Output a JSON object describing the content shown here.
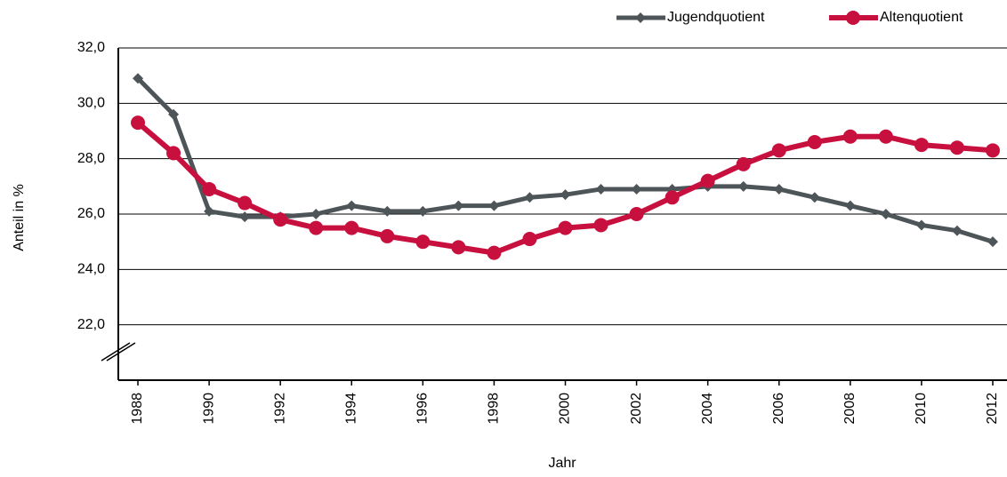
{
  "chart_data": {
    "type": "line",
    "xlabel": "Jahr",
    "ylabel": "Anteil in %",
    "x": [
      1988,
      1989,
      1990,
      1991,
      1992,
      1993,
      1994,
      1995,
      1996,
      1997,
      1998,
      1999,
      2000,
      2001,
      2002,
      2003,
      2004,
      2005,
      2006,
      2007,
      2008,
      2009,
      2010,
      2011,
      2012
    ],
    "series": [
      {
        "name": "Jugendquotient",
        "color": "#4d5559",
        "marker": "diamond",
        "values": [
          30.9,
          29.6,
          26.1,
          25.9,
          25.9,
          26.0,
          26.3,
          26.1,
          26.1,
          26.3,
          26.3,
          26.6,
          26.7,
          26.9,
          26.9,
          26.9,
          27.0,
          27.0,
          26.9,
          26.6,
          26.3,
          26.0,
          25.6,
          25.4,
          25.0
        ]
      },
      {
        "name": "Altenquotient",
        "color": "#c8103f",
        "marker": "circle",
        "values": [
          29.3,
          28.2,
          26.9,
          26.4,
          25.8,
          25.5,
          25.5,
          25.2,
          25.0,
          24.8,
          24.6,
          25.1,
          25.5,
          25.6,
          26.0,
          26.6,
          27.2,
          27.8,
          28.3,
          28.6,
          28.8,
          28.8,
          28.5,
          28.4,
          28.3
        ]
      }
    ],
    "xlim": [
      1987.45,
      2012.4
    ],
    "xticks": [
      1988,
      1990,
      1992,
      1994,
      1996,
      1998,
      2000,
      2002,
      2004,
      2006,
      2008,
      2010,
      2012
    ],
    "ylim": [
      20,
      32
    ],
    "yticks": [
      {
        "value": 22,
        "label": "22,0"
      },
      {
        "value": 24,
        "label": "24,0"
      },
      {
        "value": 26,
        "label": "26,0"
      },
      {
        "value": 28,
        "label": "28,0"
      },
      {
        "value": 30,
        "label": "30,0"
      },
      {
        "value": 32,
        "label": "32,0"
      }
    ],
    "grid": true,
    "legend": "top-right"
  }
}
